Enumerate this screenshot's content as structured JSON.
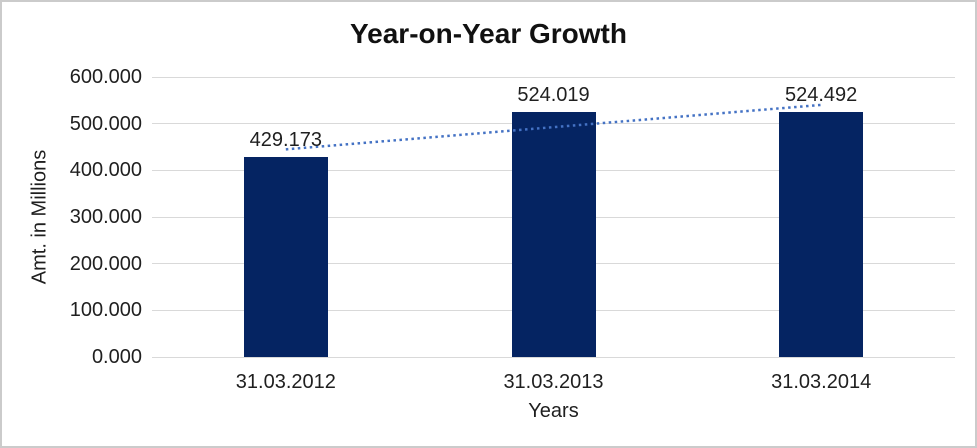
{
  "window": {
    "background": "#FFFFFF",
    "frame_border_color": "#CBCBCB"
  },
  "chart_data": {
    "type": "bar",
    "title": "Year-on-Year Growth",
    "xlabel": "Years",
    "ylabel": "Amt. in Millions",
    "categories": [
      "31.03.2012",
      "31.03.2013",
      "31.03.2014"
    ],
    "values": [
      429.173,
      524.019,
      524.492
    ],
    "data_labels": [
      "429.173",
      "524.019",
      "524.492"
    ],
    "ylim": [
      0,
      600
    ],
    "y_tick_values": [
      0,
      100,
      200,
      300,
      400,
      500,
      600
    ],
    "y_tick_labels": [
      "0.000",
      "100.000",
      "200.000",
      "300.000",
      "400.000",
      "500.000",
      "600.000"
    ],
    "grid": "horizontal",
    "legend": "none",
    "trendline": {
      "type": "linear",
      "style": "dotted",
      "start_value": 444.9,
      "end_value": 540.2
    },
    "colors": {
      "bar": "#052462",
      "trendline": "#4472C4",
      "gridline": "#D9D9D9",
      "text": "#1F1F1F"
    }
  }
}
